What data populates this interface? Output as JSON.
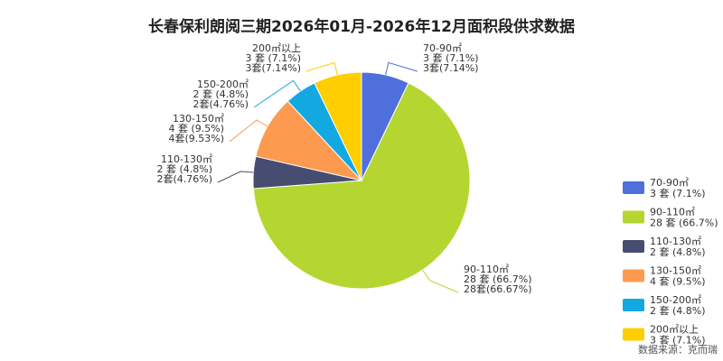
{
  "source_note": "数据来源：克而瑞",
  "chart_data": {
    "type": "pie",
    "title": "长春保利朗阅三期2026年01月-2026年12月面积段供求数据",
    "legend_position": "bottom-right",
    "slices": [
      {
        "name": "70-90㎡",
        "units": 3,
        "unit_label": "3 套 (7.1%)",
        "callout_line3": "3套(7.14%)",
        "percent": 7.14,
        "color": "#4f6fdc"
      },
      {
        "name": "90-110㎡",
        "units": 28,
        "unit_label": "28 套 (66.7%)",
        "callout_line3": "28套(66.67%)",
        "percent": 66.67,
        "color": "#b5d631"
      },
      {
        "name": "110-130㎡",
        "units": 2,
        "unit_label": "2 套 (4.8%)",
        "callout_line3": "2套(4.76%)",
        "percent": 4.76,
        "color": "#474d70"
      },
      {
        "name": "130-150㎡",
        "units": 4,
        "unit_label": "4 套 (9.5%)",
        "callout_line3": "4套(9.53%)",
        "percent": 9.53,
        "color": "#fd9a4f"
      },
      {
        "name": "150-200㎡",
        "units": 2,
        "unit_label": "2 套 (4.8%)",
        "callout_line3": "2套(4.76%)",
        "percent": 4.76,
        "color": "#14a8e0"
      },
      {
        "name": "200㎡以上",
        "units": 3,
        "unit_label": "3 套 (7.1%)",
        "callout_line3": "3套(7.14%)",
        "percent": 7.14,
        "color": "#ffce00"
      }
    ]
  }
}
